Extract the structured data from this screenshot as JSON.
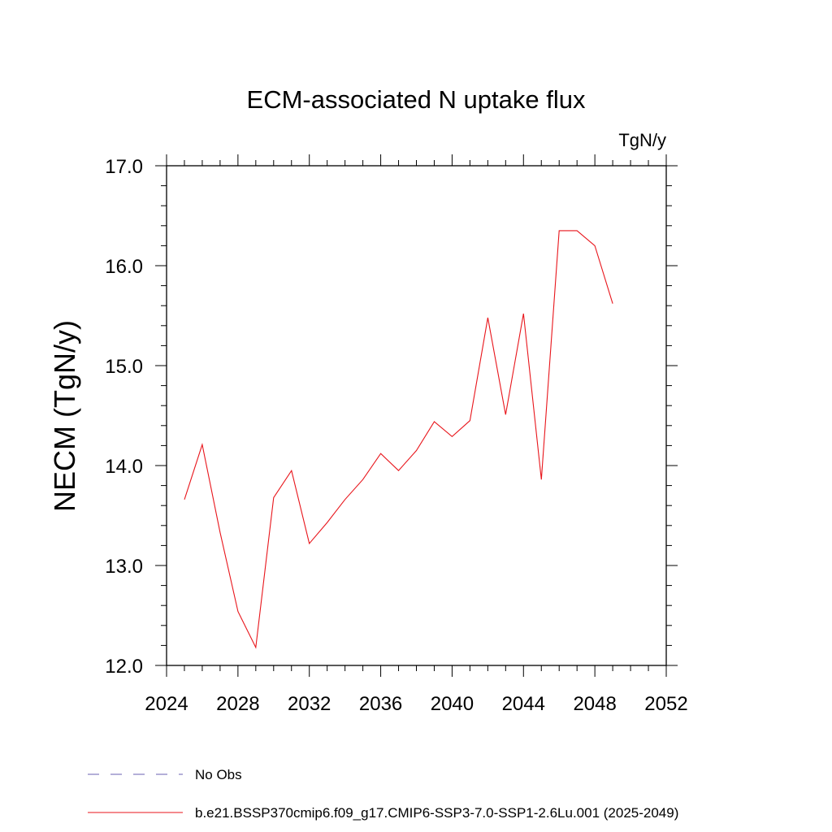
{
  "chart_data": {
    "type": "line",
    "title": "ECM-associated N uptake flux",
    "units_label": "TgN/y",
    "ylabel": "NECM  (TgN/y)",
    "xlabel": "",
    "xlim": [
      2024,
      2052
    ],
    "ylim": [
      12.0,
      17.0
    ],
    "xticks": [
      2024,
      2028,
      2032,
      2036,
      2040,
      2044,
      2048,
      2052
    ],
    "xtick_labels": [
      "2024",
      "2028",
      "2032",
      "2036",
      "2040",
      "2044",
      "2048",
      "2052"
    ],
    "yticks": [
      12.0,
      13.0,
      14.0,
      15.0,
      16.0,
      17.0
    ],
    "ytick_labels": [
      "12.0",
      "13.0",
      "14.0",
      "15.0",
      "16.0",
      "17.0"
    ],
    "grid": false,
    "legend_position": "bottom",
    "series": [
      {
        "name": "b.e21.BSSP370cmip6.f09_g17.CMIP6-SSP3-7.0-SSP1-2.6Lu.001 (2025-2049)",
        "color": "#e8151b",
        "style": "solid",
        "x": [
          2025,
          2026,
          2027,
          2028,
          2029,
          2030,
          2031,
          2032,
          2033,
          2034,
          2035,
          2036,
          2037,
          2038,
          2039,
          2040,
          2041,
          2042,
          2043,
          2044,
          2045,
          2046,
          2047,
          2048,
          2049
        ],
        "y": [
          13.66,
          14.21,
          13.33,
          12.54,
          12.18,
          13.68,
          13.95,
          13.22,
          13.43,
          13.66,
          13.86,
          14.12,
          13.95,
          14.15,
          14.44,
          14.29,
          14.45,
          15.48,
          14.51,
          15.52,
          13.86,
          16.35,
          16.35,
          16.2,
          15.62
        ]
      }
    ],
    "legend": [
      {
        "label": "No Obs",
        "color": "#6a5fb0",
        "style": "dashed"
      },
      {
        "label": "b.e21.BSSP370cmip6.f09_g17.CMIP6-SSP3-7.0-SSP1-2.6Lu.001 (2025-2049)",
        "color": "#e8151b",
        "style": "solid"
      }
    ]
  }
}
